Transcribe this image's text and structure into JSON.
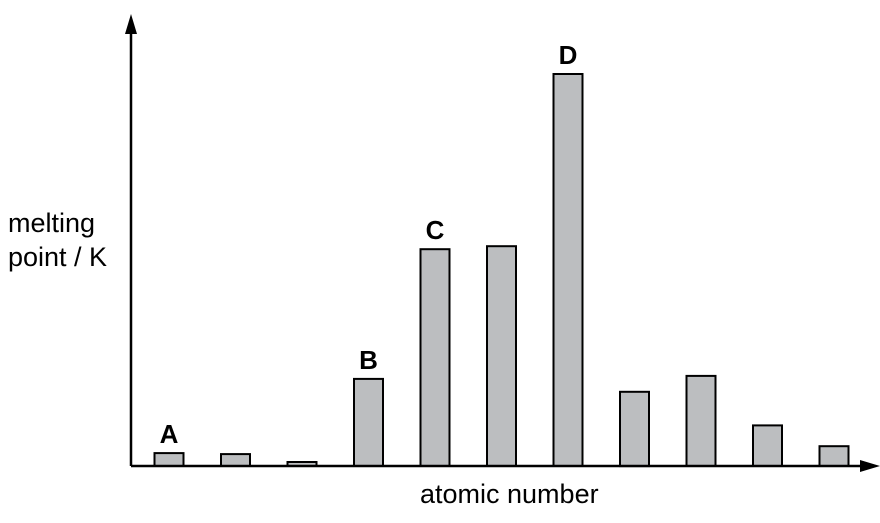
{
  "chart_data": {
    "type": "bar",
    "title": "",
    "xlabel": "atomic number",
    "ylabel_lines": [
      "melting",
      "point / K"
    ],
    "ylim": [
      0,
      400
    ],
    "grid": false,
    "legend": "none",
    "values": [
      13,
      12,
      4,
      88,
      219,
      222,
      396,
      75,
      91,
      41,
      20
    ],
    "bar_labels": [
      "A",
      "",
      "",
      "B",
      "C",
      "",
      "D",
      "",
      "",
      "",
      ""
    ],
    "colors": {
      "bar_fill": "#bcbec0",
      "bar_stroke": "#000000",
      "axis": "#000000",
      "text": "#000000"
    }
  }
}
